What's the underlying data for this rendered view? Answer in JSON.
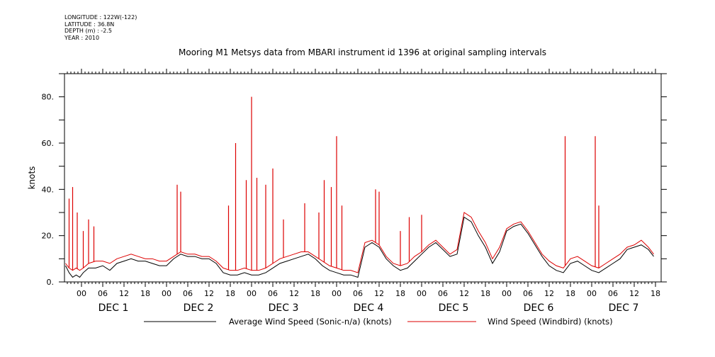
{
  "header": {
    "longitude": "LONGITUDE : 122W(-122)",
    "latitude": "LATITUDE : 36.8N",
    "depth": "DEPTH (m) : -2.5",
    "year": "YEAR : 2010"
  },
  "chart_data": {
    "type": "line",
    "title": "Mooring M1 Metsys data from MBARI instrument id 1396 at original sampling intervals",
    "xlabel": "",
    "ylabel": "knots",
    "ylim": [
      0,
      90
    ],
    "yticks": [
      0,
      20,
      40,
      60,
      80
    ],
    "ytick_labels": [
      "0.",
      "20.",
      "40.",
      "60.",
      "80."
    ],
    "xlim_hours": [
      -5,
      162
    ],
    "hour_tick_labels": [
      "00",
      "06",
      "12",
      "18",
      "00",
      "06",
      "12",
      "18",
      "00",
      "06",
      "12",
      "18",
      "00",
      "06",
      "12",
      "18",
      "00",
      "06",
      "12",
      "18",
      "00",
      "06",
      "12",
      "18",
      "00",
      "06",
      "12",
      "18"
    ],
    "day_labels": [
      "DEC   1",
      "DEC   2",
      "DEC   3",
      "DEC   4",
      "DEC   5",
      "DEC   6",
      "DEC   7"
    ],
    "grid": false,
    "legend": "bottom",
    "series": [
      {
        "name": "Average Wind Speed (Sonic-n/a) (knots)",
        "color": "#000000",
        "x": [
          -4.5,
          -3.5,
          -2.5,
          -1.5,
          -0.5,
          0.5,
          2,
          4,
          6,
          8,
          10,
          12,
          14,
          16,
          18,
          20,
          22,
          24,
          26,
          28,
          30,
          32,
          34,
          36,
          38,
          40,
          42,
          44,
          46,
          48,
          50,
          52,
          54,
          56,
          58,
          60,
          62,
          64,
          66,
          68,
          70,
          72,
          74,
          76,
          78,
          80,
          82,
          84,
          86,
          88,
          90,
          92,
          94,
          96,
          98,
          100,
          102,
          104,
          106,
          108,
          110,
          112,
          114,
          116,
          118,
          120,
          122,
          124,
          126,
          128,
          130,
          132,
          134,
          136,
          138,
          140,
          142,
          144,
          146,
          148,
          150,
          152,
          154,
          156,
          158,
          160,
          161.5
        ],
        "y": [
          7,
          4,
          2,
          3,
          2,
          4,
          6,
          6,
          7,
          5,
          8,
          9,
          10,
          9,
          9,
          8,
          7,
          7,
          10,
          12,
          11,
          11,
          10,
          10,
          8,
          4,
          3,
          3,
          4,
          3,
          3,
          4,
          6,
          8,
          9,
          10,
          11,
          12,
          10,
          7,
          5,
          4,
          3,
          3,
          2,
          15,
          17,
          15,
          10,
          7,
          5,
          6,
          9,
          12,
          15,
          17,
          14,
          11,
          12,
          28,
          26,
          20,
          15,
          8,
          13,
          22,
          24,
          25,
          21,
          16,
          11,
          7,
          5,
          4,
          8,
          9,
          7,
          5,
          4,
          6,
          8,
          10,
          14,
          15,
          16,
          14,
          11
        ]
      },
      {
        "name": "Wind Speed (Windbird) (knots)",
        "color": "#dd0000",
        "x": [
          -4.5,
          -3.5,
          -2.5,
          -1.5,
          -0.5,
          0.5,
          2,
          4,
          6,
          8,
          10,
          12,
          14,
          16,
          18,
          20,
          22,
          24,
          26,
          28,
          30,
          32,
          34,
          36,
          38,
          40,
          42,
          44,
          46,
          48,
          50,
          52,
          54,
          56,
          58,
          60,
          62,
          64,
          66,
          68,
          70,
          72,
          74,
          76,
          78,
          80,
          82,
          84,
          86,
          88,
          90,
          92,
          94,
          96,
          98,
          100,
          102,
          104,
          106,
          108,
          110,
          112,
          114,
          116,
          118,
          120,
          122,
          124,
          126,
          128,
          130,
          132,
          134,
          136,
          138,
          140,
          142,
          144,
          146,
          148,
          150,
          152,
          154,
          156,
          158,
          160,
          161.5
        ],
        "y": [
          8,
          6,
          5,
          6,
          5,
          6,
          8,
          9,
          9,
          8,
          10,
          11,
          12,
          11,
          10,
          10,
          9,
          9,
          11,
          13,
          12,
          12,
          11,
          11,
          9,
          6,
          5,
          5,
          6,
          5,
          5,
          6,
          8,
          10,
          11,
          12,
          13,
          13,
          11,
          9,
          7,
          6,
          5,
          5,
          4,
          17,
          18,
          16,
          11,
          8,
          7,
          8,
          11,
          13,
          16,
          18,
          15,
          12,
          14,
          30,
          28,
          22,
          17,
          10,
          15,
          23,
          25,
          26,
          22,
          17,
          12,
          9,
          7,
          6,
          10,
          11,
          9,
          7,
          6,
          8,
          10,
          12,
          15,
          16,
          18,
          15,
          12
        ],
        "spikes": [
          {
            "x": -3.5,
            "y": 36
          },
          {
            "x": -2.5,
            "y": 41
          },
          {
            "x": -1.2,
            "y": 30
          },
          {
            "x": 0.5,
            "y": 22
          },
          {
            "x": 2,
            "y": 27
          },
          {
            "x": 3.5,
            "y": 24
          },
          {
            "x": 27,
            "y": 42
          },
          {
            "x": 28,
            "y": 39
          },
          {
            "x": 41.5,
            "y": 33
          },
          {
            "x": 43.5,
            "y": 60
          },
          {
            "x": 46.5,
            "y": 44
          },
          {
            "x": 48,
            "y": 80
          },
          {
            "x": 49.5,
            "y": 45
          },
          {
            "x": 52,
            "y": 42
          },
          {
            "x": 54,
            "y": 49
          },
          {
            "x": 57,
            "y": 27
          },
          {
            "x": 63,
            "y": 34
          },
          {
            "x": 67,
            "y": 30
          },
          {
            "x": 68.5,
            "y": 44
          },
          {
            "x": 70.5,
            "y": 41
          },
          {
            "x": 72,
            "y": 63
          },
          {
            "x": 73.5,
            "y": 33
          },
          {
            "x": 83,
            "y": 40
          },
          {
            "x": 84,
            "y": 39
          },
          {
            "x": 90,
            "y": 22
          },
          {
            "x": 92.5,
            "y": 28
          },
          {
            "x": 96,
            "y": 29
          },
          {
            "x": 136.5,
            "y": 63
          },
          {
            "x": 145,
            "y": 63
          },
          {
            "x": 146,
            "y": 33
          }
        ]
      }
    ]
  }
}
